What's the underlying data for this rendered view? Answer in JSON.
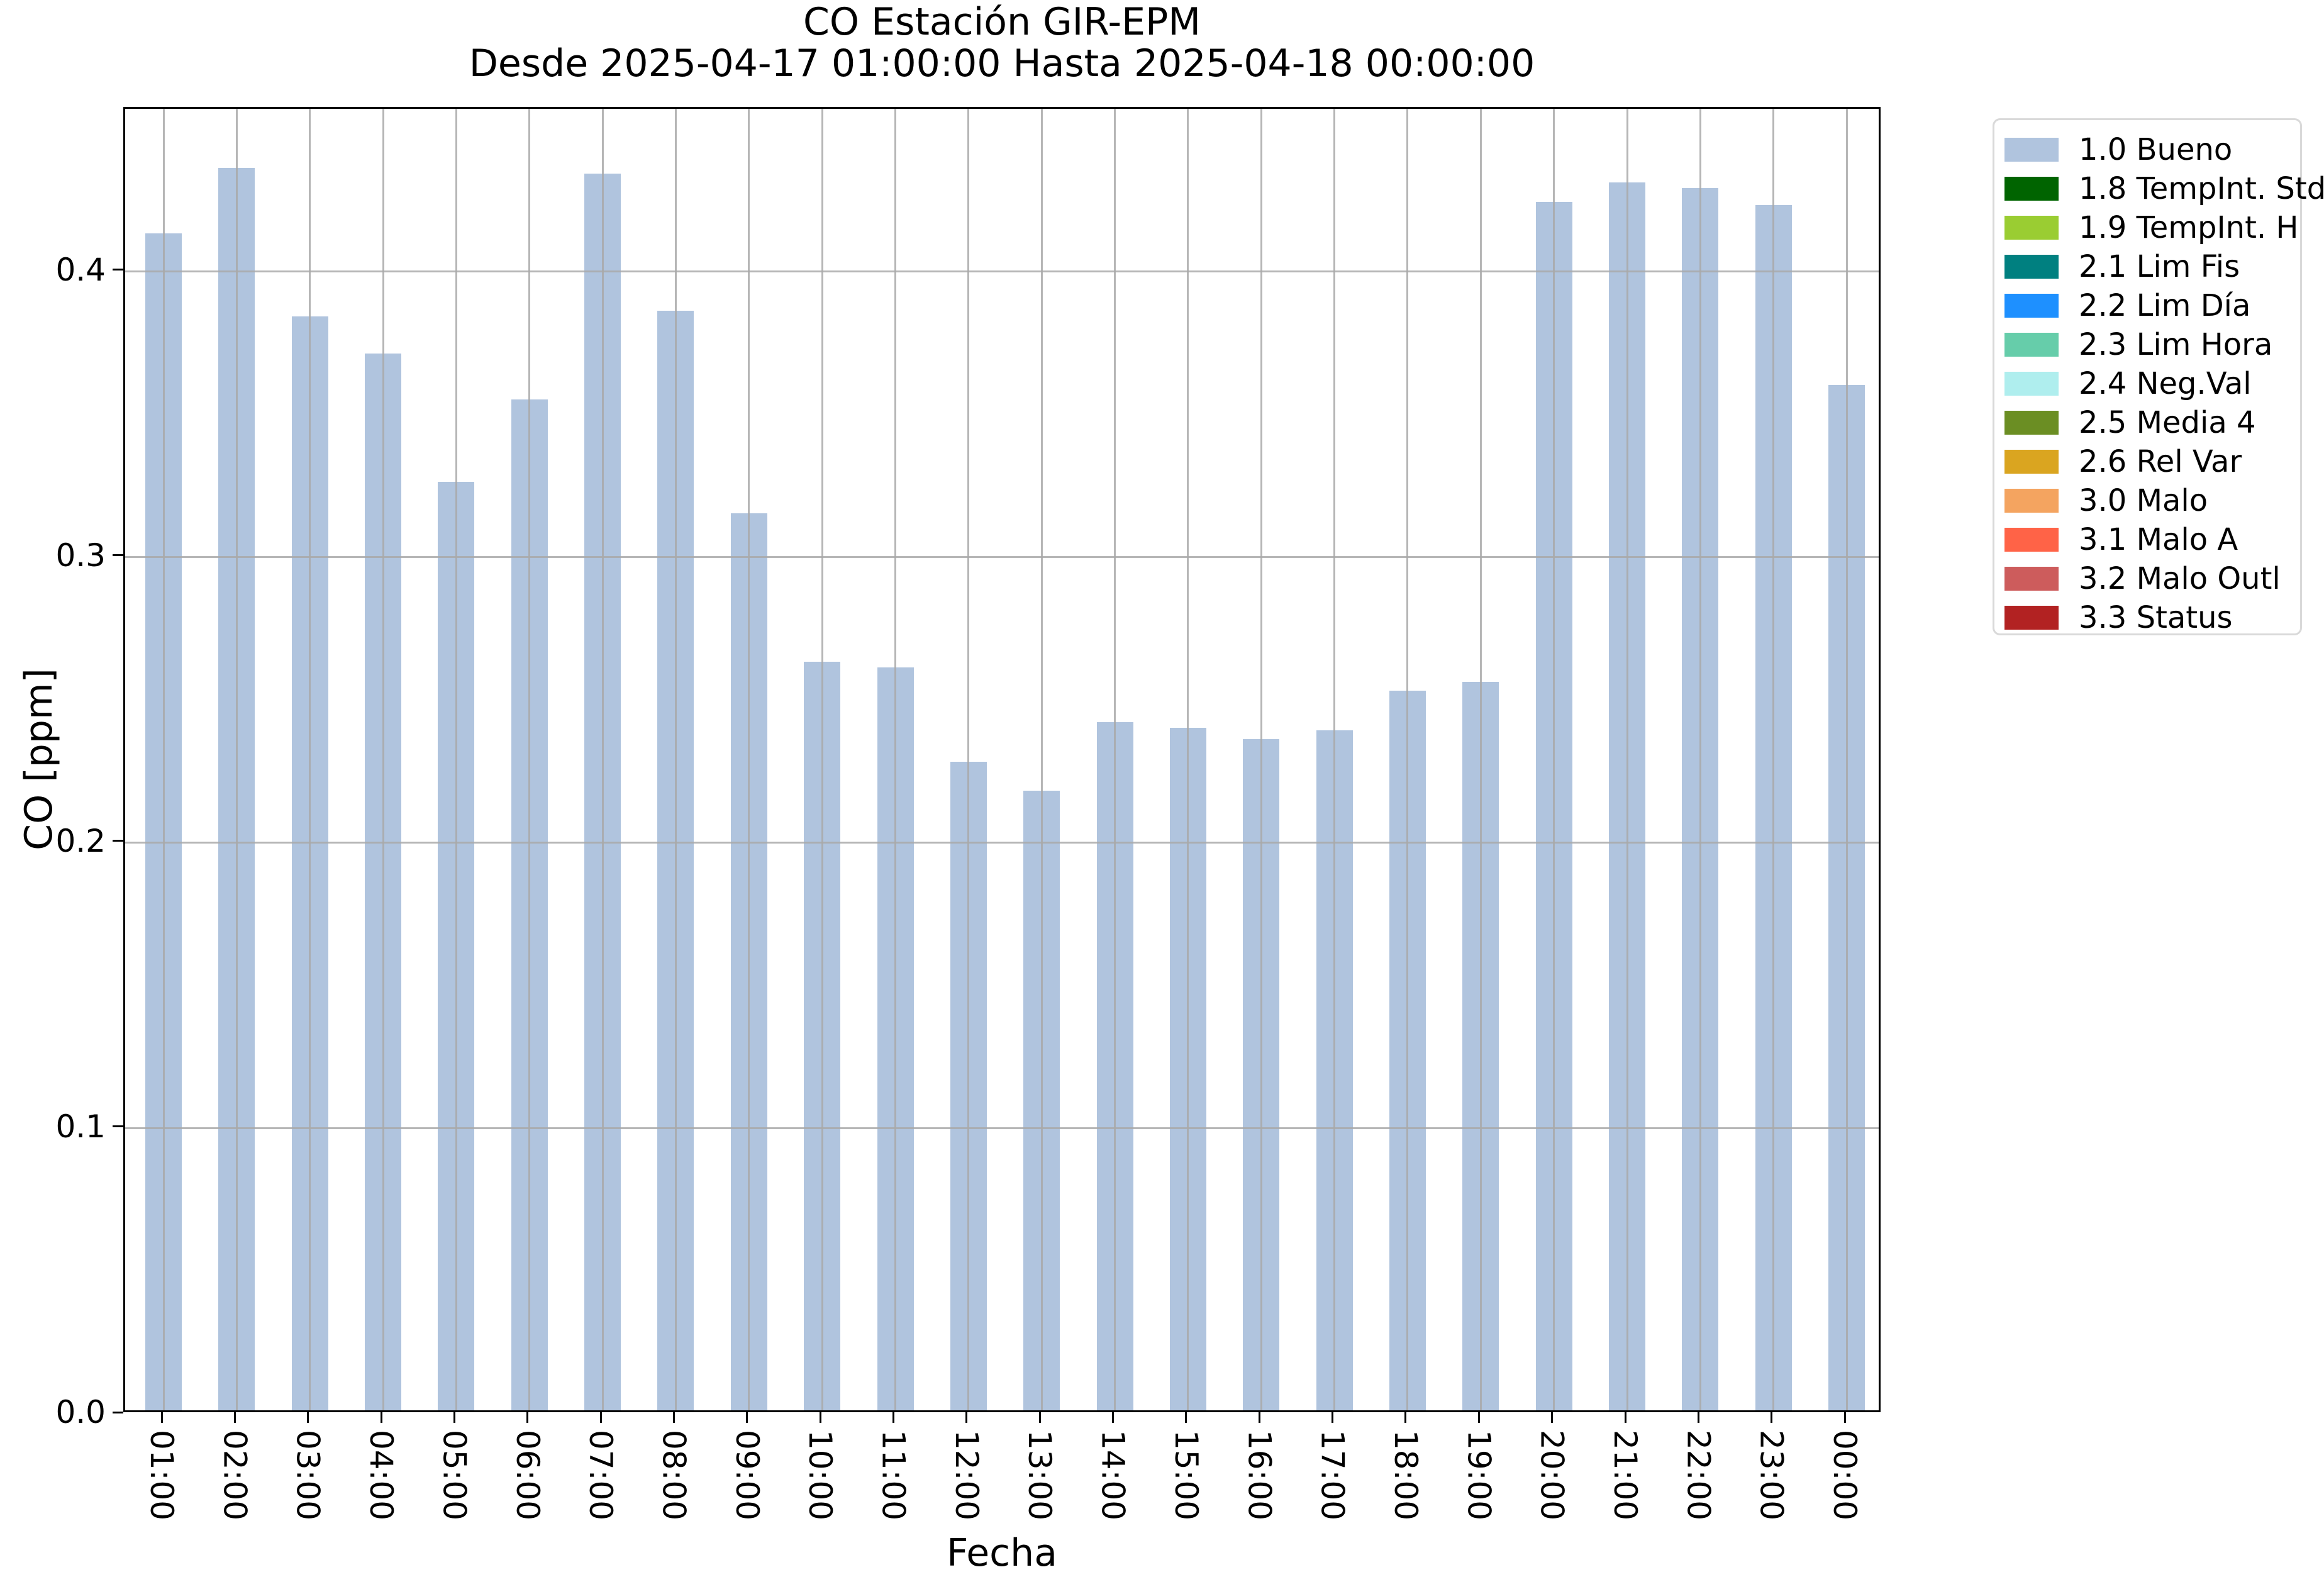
{
  "title": "CO Estación GIR-EPM",
  "subtitle": "Desde 2025-04-17 01:00:00 Hasta 2025-04-18 00:00:00",
  "chart_data": {
    "type": "bar",
    "title": "CO Estación GIR-EPM",
    "subtitle": "Desde 2025-04-17 01:00:00 Hasta 2025-04-18 00:00:00",
    "xlabel": "Fecha",
    "ylabel": "CO [ppm]",
    "categories": [
      "01:00",
      "02:00",
      "03:00",
      "04:00",
      "05:00",
      "06:00",
      "07:00",
      "08:00",
      "09:00",
      "10:00",
      "11:00",
      "12:00",
      "13:00",
      "14:00",
      "15:00",
      "16:00",
      "17:00",
      "18:00",
      "19:00",
      "20:00",
      "21:00",
      "22:00",
      "23:00",
      "00:00"
    ],
    "values": [
      0.412,
      0.435,
      0.383,
      0.37,
      0.325,
      0.354,
      0.433,
      0.385,
      0.314,
      0.262,
      0.26,
      0.227,
      0.217,
      0.241,
      0.239,
      0.235,
      0.238,
      0.252,
      0.255,
      0.423,
      0.43,
      0.428,
      0.422,
      0.359
    ],
    "bar_color": "#b0c4de",
    "grid": true,
    "ylim": [
      0,
      0.457
    ],
    "yticks": [
      "0.0",
      "0.1",
      "0.2",
      "0.3",
      "0.4"
    ],
    "ytick_values": [
      0.0,
      0.1,
      0.2,
      0.3,
      0.4
    ],
    "legend_position": "upper right, outside axes",
    "legend": [
      {
        "label": "1.0 Bueno",
        "color": "#b0c4de"
      },
      {
        "label": "1.8 TempInt. Std",
        "color": "#006400"
      },
      {
        "label": "1.9 TempInt. H",
        "color": "#9acd32"
      },
      {
        "label": "2.1 Lim Fis",
        "color": "#008080"
      },
      {
        "label": "2.2 Lim Día",
        "color": "#1e90ff"
      },
      {
        "label": "2.3 Lim Hora",
        "color": "#66cdaa"
      },
      {
        "label": "2.4 Neg.Val",
        "color": "#afeeee"
      },
      {
        "label": "2.5 Media 4",
        "color": "#6b8e23"
      },
      {
        "label": "2.6 Rel Var",
        "color": "#daa520"
      },
      {
        "label": "3.0 Malo",
        "color": "#f4a460"
      },
      {
        "label": "3.1 Malo A",
        "color": "#ff6347"
      },
      {
        "label": "3.2 Malo Outl",
        "color": "#cd5c5c"
      },
      {
        "label": "3.3 Status",
        "color": "#b22222"
      }
    ]
  }
}
